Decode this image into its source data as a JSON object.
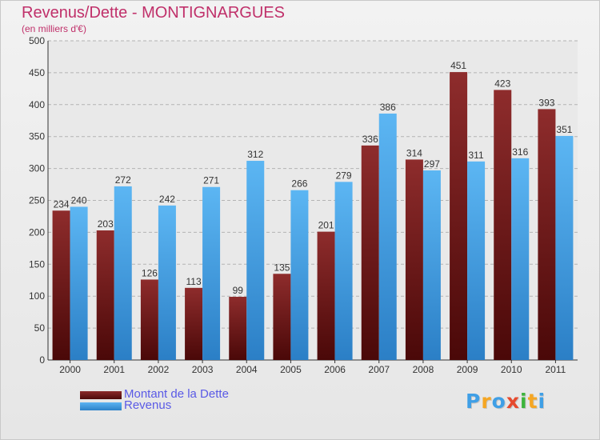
{
  "chart_data": {
    "type": "bar",
    "title": "Revenus/Dette - MONTIGNARGUES",
    "subtitle": "(en milliers d'€)",
    "categories": [
      "2000",
      "2001",
      "2002",
      "2003",
      "2004",
      "2005",
      "2006",
      "2007",
      "2008",
      "2009",
      "2010",
      "2011"
    ],
    "series": [
      {
        "name": "Montant de la Dette",
        "color": "#7a1c1c",
        "values": [
          234,
          203,
          126,
          113,
          99,
          135,
          201,
          336,
          314,
          451,
          423,
          393
        ]
      },
      {
        "name": "Revenus",
        "color": "#3f9fe6",
        "values": [
          240,
          272,
          242,
          271,
          312,
          266,
          279,
          386,
          297,
          311,
          316,
          351
        ]
      }
    ],
    "ylim": [
      0,
      500
    ],
    "yticks": [
      0,
      50,
      100,
      150,
      200,
      250,
      300,
      350,
      400,
      450,
      500
    ],
    "grid": true,
    "legend_position": "bottom-left"
  },
  "logo": {
    "letters": [
      {
        "ch": "P",
        "color": "#3f9fe6"
      },
      {
        "ch": "r",
        "color": "#f5a623"
      },
      {
        "ch": "o",
        "color": "#3f9fe6"
      },
      {
        "ch": "x",
        "color": "#e64a2e"
      },
      {
        "ch": "i",
        "color": "#3cb43c"
      },
      {
        "ch": "t",
        "color": "#f5a623"
      },
      {
        "ch": "i",
        "color": "#3f9fe6"
      }
    ]
  }
}
